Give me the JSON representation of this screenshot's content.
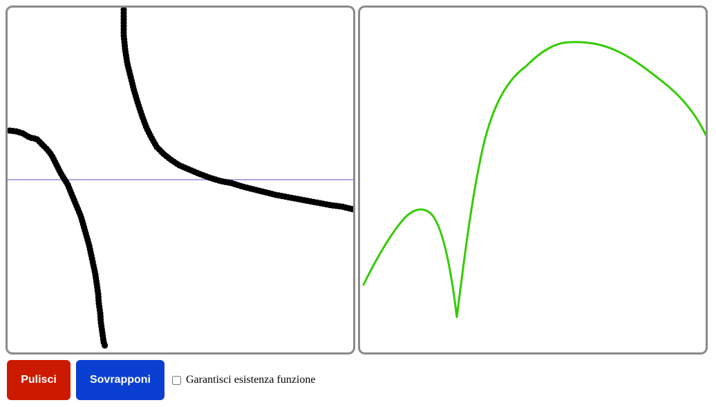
{
  "canvases": {
    "drawing": {
      "stroke_color": "#000000",
      "axis_color": "#8b87d8"
    },
    "result": {
      "stroke_color": "#33cc00"
    }
  },
  "controls": {
    "clear_label": "Pulisci",
    "overlay_label": "Sovrapponi",
    "ensure_function_label": "Garantisci esistenza funzione",
    "ensure_function_checked": false
  },
  "colors": {
    "clear_button": "#cc1a00",
    "overlay_button": "#0a3fd1",
    "canvas_border": "#8a8a8a"
  }
}
